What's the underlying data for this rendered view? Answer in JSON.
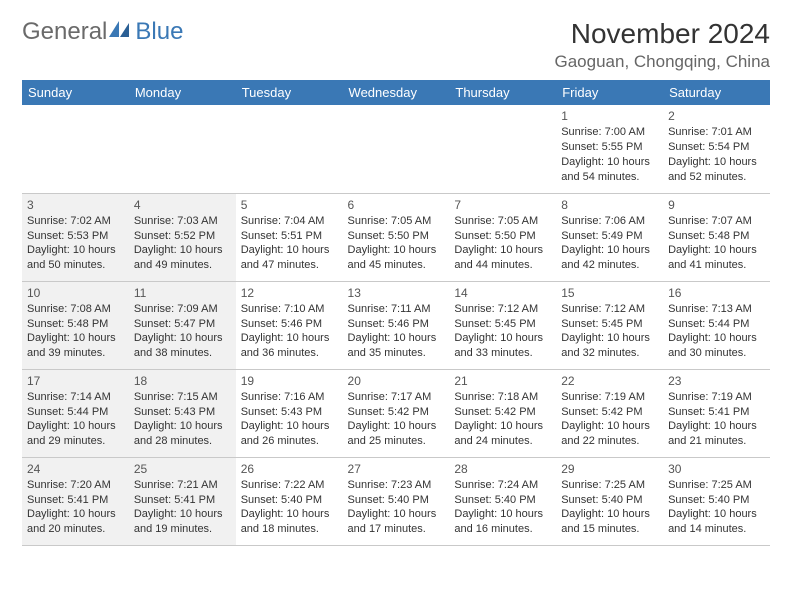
{
  "logo": {
    "text1": "General",
    "text2": "Blue"
  },
  "title": "November 2024",
  "location": "Gaoguan, Chongqing, China",
  "colors": {
    "header_bg": "#3a78b5",
    "header_text": "#ffffff",
    "shaded_bg": "#f1f1f1",
    "border": "#c9c9c9",
    "logo_gray": "#6a6a6a",
    "logo_blue": "#3a78b5"
  },
  "weekdays": [
    "Sunday",
    "Monday",
    "Tuesday",
    "Wednesday",
    "Thursday",
    "Friday",
    "Saturday"
  ],
  "weeks": [
    [
      null,
      null,
      null,
      null,
      null,
      {
        "day": "1",
        "sunrise": "Sunrise: 7:00 AM",
        "sunset": "Sunset: 5:55 PM",
        "daylight": "Daylight: 10 hours and 54 minutes."
      },
      {
        "day": "2",
        "sunrise": "Sunrise: 7:01 AM",
        "sunset": "Sunset: 5:54 PM",
        "daylight": "Daylight: 10 hours and 52 minutes."
      }
    ],
    [
      {
        "day": "3",
        "sunrise": "Sunrise: 7:02 AM",
        "sunset": "Sunset: 5:53 PM",
        "daylight": "Daylight: 10 hours and 50 minutes."
      },
      {
        "day": "4",
        "sunrise": "Sunrise: 7:03 AM",
        "sunset": "Sunset: 5:52 PM",
        "daylight": "Daylight: 10 hours and 49 minutes."
      },
      {
        "day": "5",
        "sunrise": "Sunrise: 7:04 AM",
        "sunset": "Sunset: 5:51 PM",
        "daylight": "Daylight: 10 hours and 47 minutes."
      },
      {
        "day": "6",
        "sunrise": "Sunrise: 7:05 AM",
        "sunset": "Sunset: 5:50 PM",
        "daylight": "Daylight: 10 hours and 45 minutes."
      },
      {
        "day": "7",
        "sunrise": "Sunrise: 7:05 AM",
        "sunset": "Sunset: 5:50 PM",
        "daylight": "Daylight: 10 hours and 44 minutes."
      },
      {
        "day": "8",
        "sunrise": "Sunrise: 7:06 AM",
        "sunset": "Sunset: 5:49 PM",
        "daylight": "Daylight: 10 hours and 42 minutes."
      },
      {
        "day": "9",
        "sunrise": "Sunrise: 7:07 AM",
        "sunset": "Sunset: 5:48 PM",
        "daylight": "Daylight: 10 hours and 41 minutes."
      }
    ],
    [
      {
        "day": "10",
        "sunrise": "Sunrise: 7:08 AM",
        "sunset": "Sunset: 5:48 PM",
        "daylight": "Daylight: 10 hours and 39 minutes."
      },
      {
        "day": "11",
        "sunrise": "Sunrise: 7:09 AM",
        "sunset": "Sunset: 5:47 PM",
        "daylight": "Daylight: 10 hours and 38 minutes."
      },
      {
        "day": "12",
        "sunrise": "Sunrise: 7:10 AM",
        "sunset": "Sunset: 5:46 PM",
        "daylight": "Daylight: 10 hours and 36 minutes."
      },
      {
        "day": "13",
        "sunrise": "Sunrise: 7:11 AM",
        "sunset": "Sunset: 5:46 PM",
        "daylight": "Daylight: 10 hours and 35 minutes."
      },
      {
        "day": "14",
        "sunrise": "Sunrise: 7:12 AM",
        "sunset": "Sunset: 5:45 PM",
        "daylight": "Daylight: 10 hours and 33 minutes."
      },
      {
        "day": "15",
        "sunrise": "Sunrise: 7:12 AM",
        "sunset": "Sunset: 5:45 PM",
        "daylight": "Daylight: 10 hours and 32 minutes."
      },
      {
        "day": "16",
        "sunrise": "Sunrise: 7:13 AM",
        "sunset": "Sunset: 5:44 PM",
        "daylight": "Daylight: 10 hours and 30 minutes."
      }
    ],
    [
      {
        "day": "17",
        "sunrise": "Sunrise: 7:14 AM",
        "sunset": "Sunset: 5:44 PM",
        "daylight": "Daylight: 10 hours and 29 minutes."
      },
      {
        "day": "18",
        "sunrise": "Sunrise: 7:15 AM",
        "sunset": "Sunset: 5:43 PM",
        "daylight": "Daylight: 10 hours and 28 minutes."
      },
      {
        "day": "19",
        "sunrise": "Sunrise: 7:16 AM",
        "sunset": "Sunset: 5:43 PM",
        "daylight": "Daylight: 10 hours and 26 minutes."
      },
      {
        "day": "20",
        "sunrise": "Sunrise: 7:17 AM",
        "sunset": "Sunset: 5:42 PM",
        "daylight": "Daylight: 10 hours and 25 minutes."
      },
      {
        "day": "21",
        "sunrise": "Sunrise: 7:18 AM",
        "sunset": "Sunset: 5:42 PM",
        "daylight": "Daylight: 10 hours and 24 minutes."
      },
      {
        "day": "22",
        "sunrise": "Sunrise: 7:19 AM",
        "sunset": "Sunset: 5:42 PM",
        "daylight": "Daylight: 10 hours and 22 minutes."
      },
      {
        "day": "23",
        "sunrise": "Sunrise: 7:19 AM",
        "sunset": "Sunset: 5:41 PM",
        "daylight": "Daylight: 10 hours and 21 minutes."
      }
    ],
    [
      {
        "day": "24",
        "sunrise": "Sunrise: 7:20 AM",
        "sunset": "Sunset: 5:41 PM",
        "daylight": "Daylight: 10 hours and 20 minutes."
      },
      {
        "day": "25",
        "sunrise": "Sunrise: 7:21 AM",
        "sunset": "Sunset: 5:41 PM",
        "daylight": "Daylight: 10 hours and 19 minutes."
      },
      {
        "day": "26",
        "sunrise": "Sunrise: 7:22 AM",
        "sunset": "Sunset: 5:40 PM",
        "daylight": "Daylight: 10 hours and 18 minutes."
      },
      {
        "day": "27",
        "sunrise": "Sunrise: 7:23 AM",
        "sunset": "Sunset: 5:40 PM",
        "daylight": "Daylight: 10 hours and 17 minutes."
      },
      {
        "day": "28",
        "sunrise": "Sunrise: 7:24 AM",
        "sunset": "Sunset: 5:40 PM",
        "daylight": "Daylight: 10 hours and 16 minutes."
      },
      {
        "day": "29",
        "sunrise": "Sunrise: 7:25 AM",
        "sunset": "Sunset: 5:40 PM",
        "daylight": "Daylight: 10 hours and 15 minutes."
      },
      {
        "day": "30",
        "sunrise": "Sunrise: 7:25 AM",
        "sunset": "Sunset: 5:40 PM",
        "daylight": "Daylight: 10 hours and 14 minutes."
      }
    ]
  ]
}
